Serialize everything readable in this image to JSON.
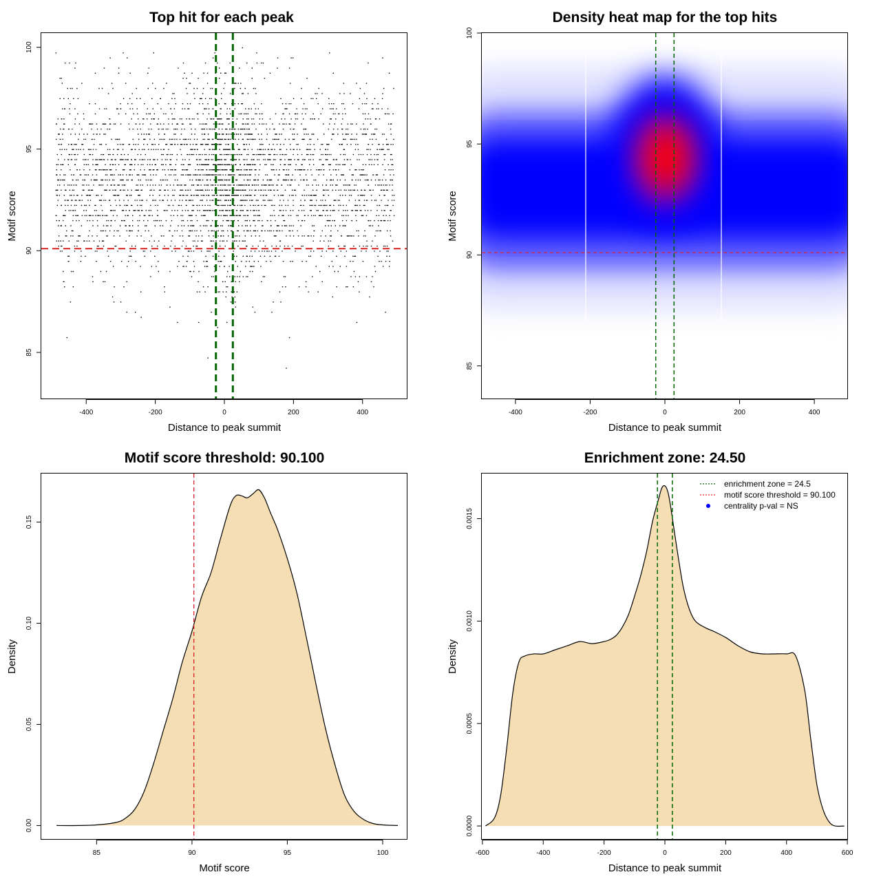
{
  "chart_data": [
    {
      "type": "scatter",
      "title": "Top hit for each peak",
      "xlabel": "Distance to peak summit",
      "ylabel": "Motif score",
      "xlim": [
        -530,
        530
      ],
      "ylim": [
        82.7,
        100.7
      ],
      "xticks": [
        "-400",
        "-200",
        "0",
        "200",
        "400"
      ],
      "yticks": [
        "85",
        "90",
        "95",
        "100"
      ],
      "point_count_approx": 6000,
      "point_x_range": [
        -490,
        490
      ],
      "point_y_range": [
        83.5,
        100
      ],
      "point_y_peak": 93.5,
      "enrichment_zone": [
        -24.5,
        24.5
      ],
      "threshold": 90.1,
      "colors": {
        "points": "#000000",
        "zone_lines": "#006400",
        "threshold_line": "#dd2222"
      }
    },
    {
      "type": "heatmap",
      "title": "Density heat map for the top hits",
      "xlabel": "Distance to peak summit",
      "ylabel": "Motif score",
      "xlim": [
        -490,
        490
      ],
      "ylim": [
        83.5,
        100
      ],
      "xticks": [
        "-400",
        "-200",
        "0",
        "200",
        "400"
      ],
      "yticks": [
        "85",
        "90",
        "95",
        "100"
      ],
      "hotspot": {
        "x": 0,
        "y": 94.5
      },
      "enrichment_zone": [
        -24.5,
        24.5
      ],
      "threshold": 90.1,
      "colors": {
        "low": "#ffffff",
        "mid": "#0000ff",
        "high": "#ff0000",
        "zone_lines": "#006400",
        "threshold_line": "#dd2222"
      }
    },
    {
      "type": "area",
      "title": "Motif score threshold: 90.100",
      "xlabel": "Motif score",
      "ylabel": "Density",
      "xlim": [
        82.1,
        101.3
      ],
      "ylim": [
        -0.007,
        0.174
      ],
      "xticks": [
        "85",
        "90",
        "95",
        "100"
      ],
      "yticks": [
        "0.00",
        "0.05",
        "0.10",
        "0.15"
      ],
      "x": [
        82.9,
        84.0,
        85.0,
        86.0,
        86.5,
        87.0,
        87.5,
        88.0,
        88.5,
        89.0,
        89.5,
        90.0,
        90.5,
        91.0,
        91.5,
        92.0,
        92.3,
        92.6,
        92.9,
        93.2,
        93.5,
        93.8,
        94.1,
        94.5,
        95.0,
        95.5,
        96.0,
        96.5,
        97.0,
        97.5,
        98.0,
        98.5,
        99.0,
        99.5,
        100.0,
        100.8
      ],
      "y": [
        0.0,
        0.0,
        0.0003,
        0.0015,
        0.0035,
        0.008,
        0.017,
        0.031,
        0.047,
        0.063,
        0.081,
        0.096,
        0.113,
        0.125,
        0.142,
        0.158,
        0.163,
        0.163,
        0.162,
        0.164,
        0.166,
        0.162,
        0.155,
        0.146,
        0.132,
        0.115,
        0.093,
        0.07,
        0.048,
        0.03,
        0.015,
        0.007,
        0.003,
        0.001,
        0.0003,
        0.0
      ],
      "threshold": 90.1,
      "colors": {
        "fill": "#f5deb3",
        "line": "#000000",
        "threshold_line": "#dd2222"
      }
    },
    {
      "type": "area",
      "title": "Enrichment zone: 24.50",
      "xlabel": "Distance to peak summit",
      "ylabel": "Density",
      "xlim": [
        -602,
        602
      ],
      "ylim": [
        -6.7e-05,
        0.00172
      ],
      "xticks": [
        "-600",
        "-400",
        "-200",
        "0",
        "200",
        "400",
        "600"
      ],
      "yticks": [
        "0.0000",
        "0.0005",
        "0.0010",
        "0.0015"
      ],
      "x": [
        -590,
        -560,
        -540,
        -520,
        -500,
        -480,
        -460,
        -430,
        -400,
        -360,
        -320,
        -280,
        -240,
        -200,
        -180,
        -160,
        -140,
        -120,
        -100,
        -80,
        -60,
        -40,
        -20,
        -10,
        0,
        10,
        20,
        40,
        60,
        80,
        100,
        130,
        160,
        200,
        240,
        280,
        320,
        360,
        400,
        430,
        460,
        480,
        500,
        520,
        540,
        560,
        590
      ],
      "y": [
        0.0,
        4e-05,
        0.00015,
        0.00038,
        0.00065,
        0.0008,
        0.00083,
        0.00084,
        0.00084,
        0.00086,
        0.00088,
        0.0009,
        0.00089,
        0.0009,
        0.00091,
        0.00093,
        0.00097,
        0.00103,
        0.00112,
        0.00122,
        0.00134,
        0.00149,
        0.0016,
        0.00165,
        0.00166,
        0.00163,
        0.00155,
        0.00135,
        0.00117,
        0.00106,
        0.001,
        0.00097,
        0.00095,
        0.00092,
        0.00088,
        0.00085,
        0.00084,
        0.00084,
        0.00084,
        0.00083,
        0.00066,
        0.00042,
        0.0002,
        8e-05,
        2e-05,
        0.0,
        0.0
      ],
      "enrichment_zone": [
        -24.5,
        24.5
      ],
      "legend": {
        "position": "top-right",
        "entries": [
          {
            "label": "enrichment zone = 24.5",
            "color": "#006400",
            "style": "dotted-line"
          },
          {
            "label": "motif score threshold = 90.100",
            "color": "#dd2222",
            "style": "dotted-line"
          },
          {
            "label": "centrality p-val = NS",
            "color": "#0000ff",
            "style": "point"
          }
        ]
      },
      "colors": {
        "fill": "#f5deb3",
        "line": "#000000",
        "zone_lines": "#006400"
      }
    }
  ]
}
